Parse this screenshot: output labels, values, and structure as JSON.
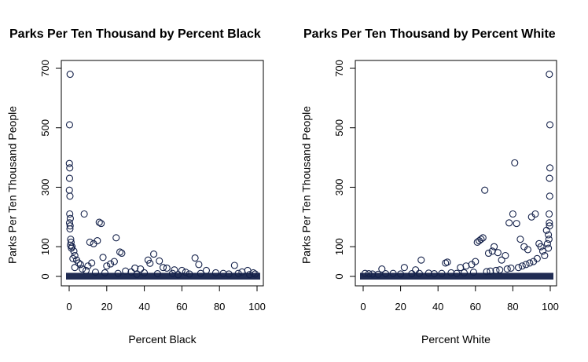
{
  "chart_data": [
    {
      "type": "scatter",
      "title": "Parks Per Ten Thousand by Percent Black",
      "xlabel": "Percent Black",
      "ylabel": "Parks Per Ten Thousand People",
      "xlim": [
        0,
        100
      ],
      "ylim": [
        0,
        700
      ],
      "xticks": [
        "0",
        "20",
        "40",
        "60",
        "80",
        "100"
      ],
      "yticks": [
        "0",
        "100",
        "300",
        "500",
        "700"
      ],
      "grid": false,
      "color": "#14214a",
      "points": [
        [
          0.5,
          680
        ],
        [
          0.2,
          510
        ],
        [
          0.1,
          380
        ],
        [
          0.3,
          365
        ],
        [
          0.2,
          330
        ],
        [
          0.1,
          290
        ],
        [
          0.4,
          270
        ],
        [
          0.3,
          210
        ],
        [
          0.6,
          195
        ],
        [
          0.2,
          180
        ],
        [
          0.5,
          170
        ],
        [
          0.4,
          160
        ],
        [
          0.8,
          125
        ],
        [
          1.0,
          115
        ],
        [
          0.7,
          105
        ],
        [
          1.5,
          100
        ],
        [
          1.2,
          95
        ],
        [
          2.5,
          85
        ],
        [
          3.0,
          70
        ],
        [
          2,
          60
        ],
        [
          4,
          55
        ],
        [
          5,
          45
        ],
        [
          6,
          40
        ],
        [
          8,
          210
        ],
        [
          16,
          182
        ],
        [
          17,
          178
        ],
        [
          11,
          115
        ],
        [
          13,
          110
        ],
        [
          15,
          120
        ],
        [
          18,
          64
        ],
        [
          25,
          130
        ],
        [
          27,
          82
        ],
        [
          28,
          78
        ],
        [
          24,
          50
        ],
        [
          22,
          42
        ],
        [
          20,
          35
        ],
        [
          10,
          35
        ],
        [
          12,
          45
        ],
        [
          45,
          75
        ],
        [
          48,
          52
        ],
        [
          43,
          44
        ],
        [
          42,
          55
        ],
        [
          50,
          30
        ],
        [
          52,
          28
        ],
        [
          35,
          28
        ],
        [
          38,
          25
        ],
        [
          56,
          22
        ],
        [
          60,
          20
        ],
        [
          67,
          62
        ],
        [
          69,
          40
        ],
        [
          73,
          20
        ],
        [
          88,
          37
        ],
        [
          95,
          20
        ],
        [
          98,
          12
        ],
        [
          99,
          8
        ],
        [
          30,
          18
        ],
        [
          33,
          15
        ],
        [
          40,
          12
        ],
        [
          55,
          10
        ],
        [
          62,
          14
        ],
        [
          70,
          10
        ],
        [
          78,
          12
        ],
        [
          82,
          10
        ],
        [
          85,
          8
        ],
        [
          90,
          10
        ],
        [
          92,
          15
        ],
        [
          96,
          6
        ],
        [
          64,
          8
        ],
        [
          58,
          6
        ],
        [
          47,
          9
        ],
        [
          36,
          7
        ],
        [
          26,
          10
        ],
        [
          19,
          12
        ],
        [
          14,
          14
        ],
        [
          9,
          20
        ],
        [
          7,
          25
        ],
        [
          3,
          30
        ]
      ]
    },
    {
      "type": "scatter",
      "title": "Parks Per Ten Thousand by Percent White",
      "xlabel": "Percent White",
      "ylabel": "Parks Per Ten Thousand People",
      "xlim": [
        0,
        100
      ],
      "ylim": [
        0,
        700
      ],
      "xticks": [
        "0",
        "20",
        "40",
        "60",
        "80",
        "100"
      ],
      "yticks": [
        "0",
        "100",
        "300",
        "500",
        "700"
      ],
      "grid": false,
      "color": "#14214a",
      "points": [
        [
          99.5,
          680
        ],
        [
          99.8,
          510
        ],
        [
          99.8,
          365
        ],
        [
          99.6,
          330
        ],
        [
          99.7,
          270
        ],
        [
          99.4,
          210
        ],
        [
          99.5,
          180
        ],
        [
          99.6,
          170
        ],
        [
          98,
          155
        ],
        [
          99,
          140
        ],
        [
          99.3,
          125
        ],
        [
          98.5,
          110
        ],
        [
          99.0,
          95
        ],
        [
          65,
          290
        ],
        [
          81,
          382
        ],
        [
          80,
          210
        ],
        [
          78,
          180
        ],
        [
          82,
          178
        ],
        [
          90,
          200
        ],
        [
          92,
          210
        ],
        [
          62,
          120
        ],
        [
          63,
          125
        ],
        [
          64,
          130
        ],
        [
          61,
          115
        ],
        [
          70,
          100
        ],
        [
          69,
          85
        ],
        [
          72,
          80
        ],
        [
          67,
          78
        ],
        [
          84,
          125
        ],
        [
          86,
          100
        ],
        [
          88,
          90
        ],
        [
          76,
          70
        ],
        [
          74,
          55
        ],
        [
          60,
          50
        ],
        [
          58,
          40
        ],
        [
          55,
          35
        ],
        [
          52,
          30
        ],
        [
          31,
          55
        ],
        [
          44,
          45
        ],
        [
          45,
          48
        ],
        [
          22,
          30
        ],
        [
          10,
          25
        ],
        [
          28,
          22
        ],
        [
          94,
          110
        ],
        [
          95,
          100
        ],
        [
          96,
          85
        ],
        [
          97,
          70
        ],
        [
          93,
          60
        ],
        [
          91,
          50
        ],
        [
          89,
          45
        ],
        [
          87,
          40
        ],
        [
          85,
          35
        ],
        [
          83,
          30
        ],
        [
          79,
          28
        ],
        [
          77,
          25
        ],
        [
          73,
          22
        ],
        [
          71,
          20
        ],
        [
          68,
          18
        ],
        [
          66,
          16
        ],
        [
          59,
          14
        ],
        [
          54,
          12
        ],
        [
          50,
          10
        ],
        [
          47,
          12
        ],
        [
          42,
          10
        ],
        [
          38,
          9
        ],
        [
          35,
          11
        ],
        [
          30,
          10
        ],
        [
          26,
          9
        ],
        [
          20,
          8
        ],
        [
          16,
          10
        ],
        [
          12,
          9
        ],
        [
          8,
          7
        ],
        [
          5,
          8
        ],
        [
          3,
          9
        ],
        [
          1,
          10
        ]
      ]
    }
  ]
}
